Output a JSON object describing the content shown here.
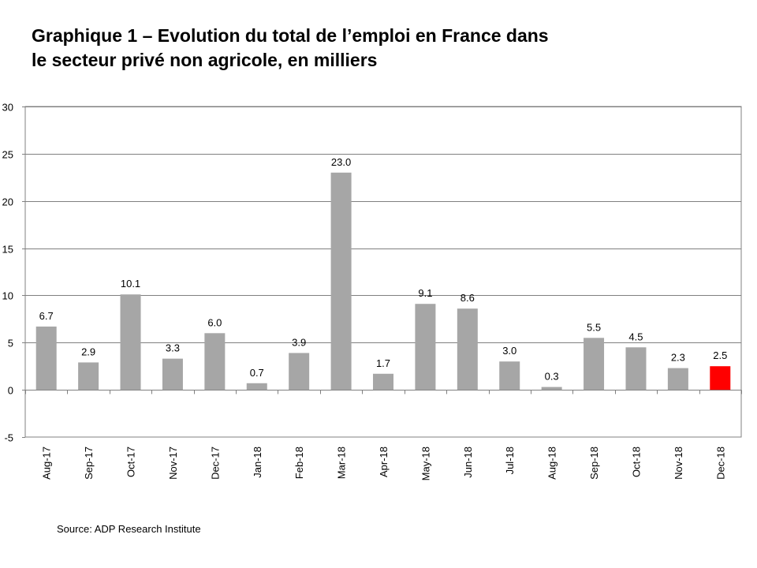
{
  "title_line1": "Graphique 1 – Evolution du total de l’emploi en France dans",
  "title_line2": "le secteur privé non agricole, en milliers",
  "source": "Source: ADP Research Institute",
  "chart_data": {
    "type": "bar",
    "title": "Graphique 1 – Evolution du total de l’emploi en France dans le secteur privé non agricole, en milliers",
    "categories": [
      "Aug-17",
      "Sep-17",
      "Oct-17",
      "Nov-17",
      "Dec-17",
      "Jan-18",
      "Feb-18",
      "Mar-18",
      "Apr-18",
      "May-18",
      "Jun-18",
      "Jul-18",
      "Aug-18",
      "Sep-18",
      "Oct-18",
      "Nov-18",
      "Dec-18"
    ],
    "values": [
      6.7,
      2.9,
      10.1,
      3.3,
      6.0,
      0.7,
      3.9,
      23.0,
      1.7,
      9.1,
      8.6,
      3.0,
      0.3,
      5.5,
      4.5,
      2.3,
      2.5
    ],
    "data_labels": [
      "6.7",
      "2.9",
      "10.1",
      "3.3",
      "6.0",
      "0.7",
      "3.9",
      "23.0",
      "1.7",
      "9.1",
      "8.6",
      "3.0",
      "0.3",
      "5.5",
      "4.5",
      "2.3",
      "2.5"
    ],
    "xlabel": "",
    "ylabel": "",
    "ylim": [
      -5,
      30
    ],
    "yticks": [
      -5,
      0,
      5,
      10,
      15,
      20,
      25,
      30
    ],
    "grid": true,
    "legend": "none",
    "bar_color": "#a6a6a6",
    "highlight_color": "#ff0000",
    "highlight_index": 16
  }
}
